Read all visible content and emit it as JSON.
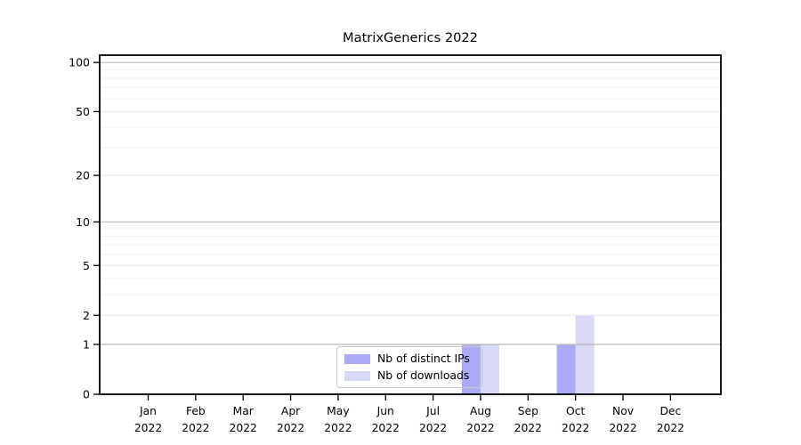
{
  "figure": {
    "title": "MatrixGenerics 2022",
    "background": "#ffffff"
  },
  "legend": {
    "items": [
      {
        "label": "Nb of distinct IPs",
        "color": "#aaaaf5"
      },
      {
        "label": "Nb of downloads",
        "color": "#d8d8f7"
      }
    ]
  },
  "chart_data": {
    "type": "bar",
    "title": "MatrixGenerics 2022",
    "categories": [
      "Jan 2022",
      "Feb 2022",
      "Mar 2022",
      "Apr 2022",
      "May 2022",
      "Jun 2022",
      "Jul 2022",
      "Aug 2022",
      "Sep 2022",
      "Oct 2022",
      "Nov 2022",
      "Dec 2022"
    ],
    "series": [
      {
        "name": "Nb of distinct IPs",
        "color": "#aaaaf5",
        "values": [
          0,
          0,
          0,
          0,
          0,
          0,
          0,
          1,
          0,
          1,
          0,
          0
        ]
      },
      {
        "name": "Nb of downloads",
        "color": "#d8d8f7",
        "values": [
          0,
          0,
          0,
          0,
          0,
          0,
          0,
          1,
          0,
          2,
          0,
          0
        ]
      }
    ],
    "xlabel": "",
    "ylabel": "",
    "yscale": "log1p",
    "ylim": [
      0,
      110
    ],
    "ytick_values": [
      0,
      1,
      2,
      5,
      10,
      20,
      50,
      100
    ],
    "ytick_labels": [
      "0",
      "1",
      "2",
      "5",
      "10",
      "20",
      "50",
      "100"
    ],
    "minor_grid_values": [
      3,
      4,
      6,
      7,
      8,
      9,
      30,
      40,
      60,
      70,
      80,
      90
    ],
    "grid": "horizontal",
    "legend_position": "lower center"
  },
  "colors": {
    "axis": "#000000",
    "grid_major_power": "#b6b6b6",
    "grid_major": "#e6e6e6",
    "grid_minor": "#f1f1f1",
    "legend_border": "#c9c9c9"
  }
}
